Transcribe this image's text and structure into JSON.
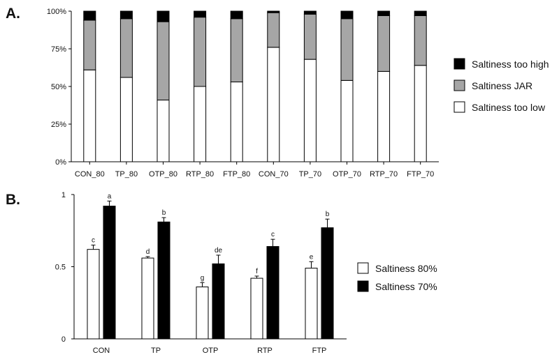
{
  "chart_data": [
    {
      "panel_label": "A.",
      "type": "bar",
      "stacked": true,
      "categories": [
        "CON_80",
        "TP_80",
        "OTP_80",
        "RTP_80",
        "FTP_80",
        "CON_70",
        "TP_70",
        "OTP_70",
        "RTP_70",
        "FTP_70"
      ],
      "series": [
        {
          "name": "Saltiness too low",
          "color": "#ffffff",
          "values": [
            61,
            56,
            41,
            50,
            53,
            76,
            68,
            54,
            60,
            64
          ]
        },
        {
          "name": "Saltiness JAR",
          "color": "#a6a6a6",
          "values": [
            33,
            39,
            52,
            46,
            42,
            23,
            30,
            41,
            37,
            33
          ]
        },
        {
          "name": "Saltiness too high",
          "color": "#000000",
          "values": [
            6,
            5,
            7,
            4,
            5,
            1,
            2,
            5,
            3,
            3
          ]
        }
      ],
      "legend_order": [
        "Saltiness too high",
        "Saltiness JAR",
        "Saltiness too low"
      ],
      "yticks": [
        "0%",
        "25%",
        "50%",
        "75%",
        "100%"
      ],
      "ylim": [
        0,
        100
      ],
      "legend_position": "right",
      "grid": false
    },
    {
      "panel_label": "B.",
      "type": "bar",
      "categories": [
        "CON",
        "TP",
        "OTP",
        "RTP",
        "FTP"
      ],
      "series": [
        {
          "name": "Saltiness 80%",
          "color": "#ffffff",
          "values": [
            0.62,
            0.56,
            0.36,
            0.42,
            0.49
          ],
          "errors": [
            0.03,
            0.01,
            0.03,
            0.015,
            0.045
          ],
          "labels": [
            "c",
            "d",
            "g",
            "f",
            "e"
          ]
        },
        {
          "name": "Saltiness 70%",
          "color": "#000000",
          "values": [
            0.92,
            0.81,
            0.52,
            0.64,
            0.77
          ],
          "errors": [
            0.035,
            0.03,
            0.06,
            0.05,
            0.06
          ],
          "labels": [
            "a",
            "b",
            "de",
            "c",
            "b"
          ]
        }
      ],
      "yticks": [
        "0",
        "0.5",
        "1"
      ],
      "ylim": [
        0,
        1
      ],
      "legend_position": "right",
      "grid": false
    }
  ]
}
